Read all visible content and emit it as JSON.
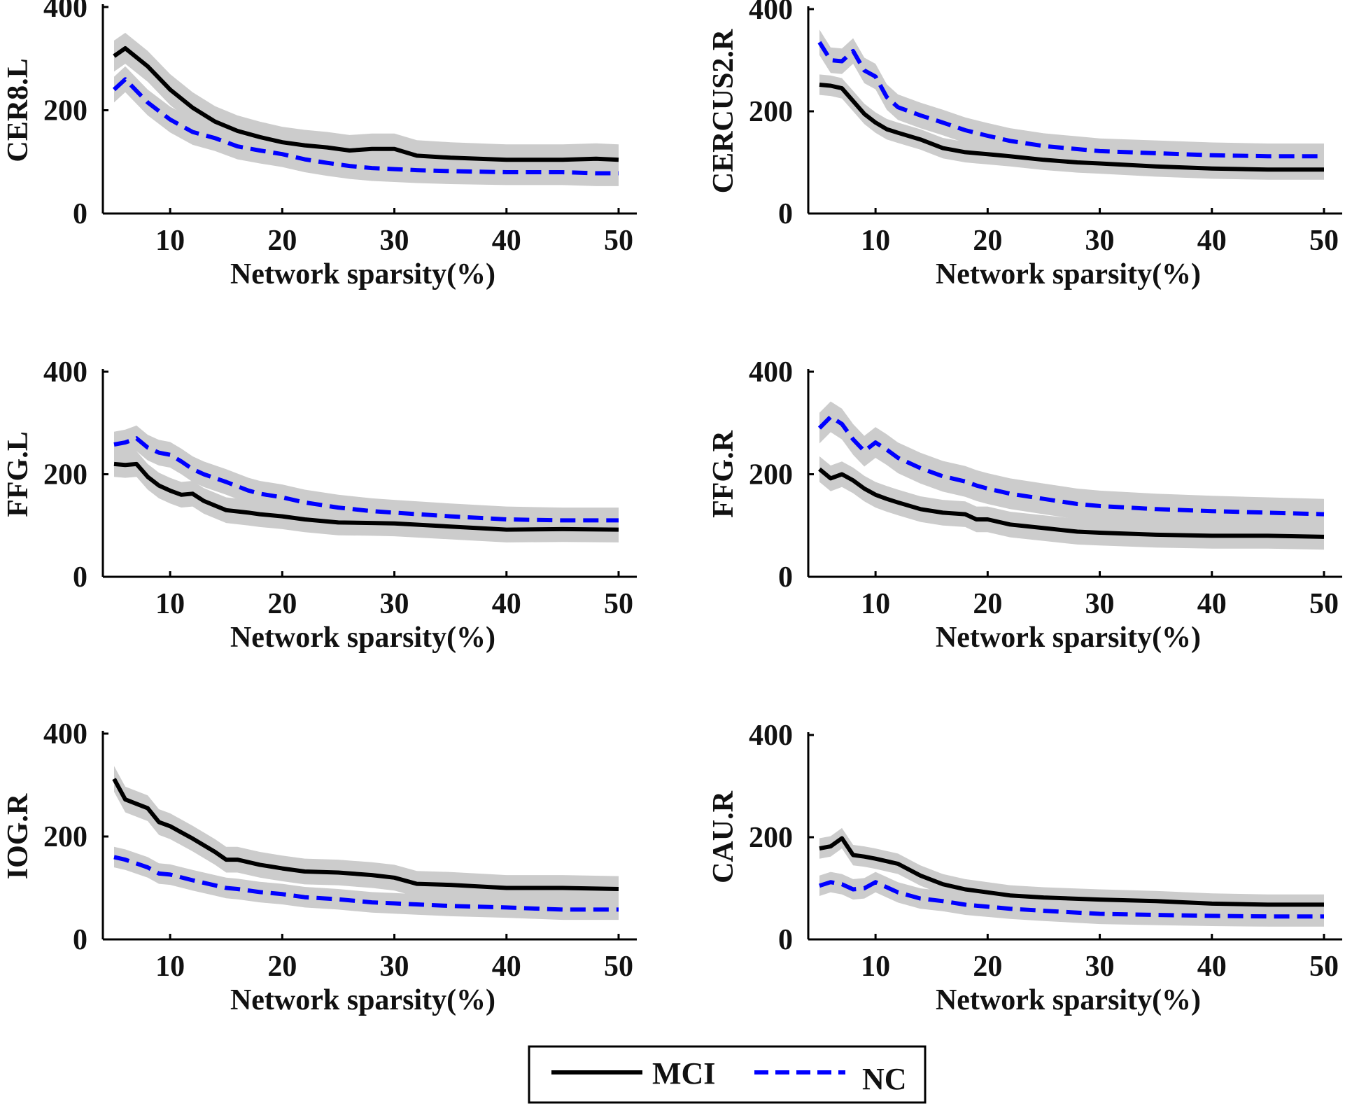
{
  "figure": {
    "legend": {
      "entries": [
        {
          "label": "MCI",
          "color": "#000000",
          "style": "solid"
        },
        {
          "label": "NC",
          "color": "#0000ff",
          "style": "dashed"
        }
      ],
      "position": "bottom-center"
    },
    "band_color": "#cccccc"
  },
  "chart_data": [
    {
      "type": "line",
      "title": "",
      "xlabel": "Network sparsity(%)",
      "ylabel": "CER8.L",
      "xlim": [
        4,
        51
      ],
      "ylim": [
        0,
        400
      ],
      "xticks": [
        10,
        20,
        30,
        40,
        50
      ],
      "yticks": [
        0,
        200,
        400
      ],
      "x": [
        5,
        6,
        8,
        10,
        12,
        14,
        16,
        18,
        20,
        22,
        24,
        26,
        28,
        30,
        32,
        35,
        40,
        45,
        48,
        50
      ],
      "series": [
        {
          "name": "MCI",
          "values": [
            305,
            320,
            285,
            240,
            205,
            178,
            160,
            148,
            138,
            132,
            128,
            122,
            125,
            125,
            112,
            108,
            104,
            104,
            106,
            104
          ],
          "band": 30
        },
        {
          "name": "NC",
          "values": [
            240,
            260,
            215,
            182,
            158,
            146,
            130,
            122,
            115,
            105,
            98,
            92,
            88,
            86,
            84,
            82,
            80,
            80,
            78,
            78
          ],
          "band": 25
        }
      ]
    },
    {
      "type": "line",
      "title": "",
      "xlabel": "Network sparsity(%)",
      "ylabel": "CERCUS2.R",
      "xlim": [
        4,
        51
      ],
      "ylim": [
        0,
        400
      ],
      "xticks": [
        10,
        20,
        30,
        40,
        50
      ],
      "yticks": [
        0,
        200,
        400
      ],
      "x": [
        5,
        6,
        7,
        8,
        9,
        10,
        11,
        12,
        14,
        16,
        18,
        20,
        22,
        25,
        28,
        30,
        35,
        40,
        45,
        50
      ],
      "series": [
        {
          "name": "MCI",
          "values": [
            252,
            250,
            245,
            220,
            195,
            178,
            165,
            158,
            145,
            128,
            120,
            116,
            112,
            105,
            100,
            98,
            92,
            88,
            86,
            86
          ],
          "band": 20
        },
        {
          "name": "NC",
          "values": [
            335,
            300,
            298,
            318,
            280,
            268,
            228,
            208,
            192,
            178,
            163,
            152,
            142,
            132,
            126,
            122,
            118,
            114,
            112,
            112
          ],
          "band": 25
        }
      ]
    },
    {
      "type": "line",
      "title": "",
      "xlabel": "Network sparsity(%)",
      "ylabel": "FFG.L",
      "xlim": [
        4,
        51
      ],
      "ylim": [
        0,
        400
      ],
      "xticks": [
        10,
        20,
        30,
        40,
        50
      ],
      "yticks": [
        0,
        200,
        400
      ],
      "x": [
        5,
        6,
        7,
        8,
        9,
        10,
        11,
        12,
        13,
        15,
        17,
        18,
        20,
        22,
        25,
        28,
        30,
        35,
        40,
        45,
        50
      ],
      "series": [
        {
          "name": "MCI",
          "values": [
            220,
            218,
            220,
            195,
            178,
            168,
            160,
            162,
            148,
            130,
            125,
            122,
            118,
            112,
            106,
            105,
            104,
            98,
            92,
            93,
            92
          ],
          "band": 25
        },
        {
          "name": "NC",
          "values": [
            258,
            262,
            270,
            252,
            242,
            238,
            225,
            210,
            200,
            185,
            168,
            162,
            155,
            145,
            135,
            128,
            125,
            118,
            112,
            110,
            110
          ],
          "band": 25
        }
      ]
    },
    {
      "type": "line",
      "title": "",
      "xlabel": "Network sparsity(%)",
      "ylabel": "FFG.R",
      "xlim": [
        4,
        51
      ],
      "ylim": [
        0,
        400
      ],
      "xticks": [
        10,
        20,
        30,
        40,
        50
      ],
      "yticks": [
        0,
        200,
        400
      ],
      "x": [
        5,
        6,
        7,
        8,
        9,
        10,
        11,
        12,
        14,
        16,
        18,
        19,
        20,
        22,
        25,
        28,
        30,
        35,
        40,
        45,
        50
      ],
      "series": [
        {
          "name": "MCI",
          "values": [
            210,
            192,
            200,
            188,
            172,
            160,
            152,
            145,
            132,
            125,
            122,
            112,
            112,
            102,
            95,
            88,
            86,
            82,
            80,
            80,
            78
          ],
          "band": 25
        },
        {
          "name": "NC",
          "values": [
            290,
            312,
            298,
            268,
            245,
            262,
            248,
            232,
            212,
            196,
            186,
            178,
            172,
            162,
            152,
            142,
            138,
            132,
            128,
            125,
            122
          ],
          "band": 30
        }
      ]
    },
    {
      "type": "line",
      "title": "",
      "xlabel": "Network sparsity(%)",
      "ylabel": "IOG.R",
      "xlim": [
        4,
        51
      ],
      "ylim": [
        0,
        400
      ],
      "xticks": [
        10,
        20,
        30,
        40,
        50
      ],
      "yticks": [
        0,
        200,
        400
      ],
      "x": [
        5,
        6,
        8,
        9,
        10,
        12,
        14,
        15,
        16,
        18,
        20,
        22,
        25,
        28,
        30,
        32,
        35,
        40,
        45,
        50
      ],
      "series": [
        {
          "name": "MCI",
          "values": [
            312,
            272,
            255,
            228,
            220,
            196,
            170,
            155,
            155,
            145,
            138,
            132,
            130,
            125,
            120,
            108,
            106,
            100,
            100,
            98
          ],
          "band": 25
        },
        {
          "name": "NC",
          "values": [
            160,
            155,
            140,
            128,
            126,
            115,
            105,
            100,
            98,
            92,
            88,
            82,
            78,
            72,
            70,
            68,
            65,
            62,
            58,
            58
          ],
          "band": 20
        }
      ]
    },
    {
      "type": "line",
      "title": "",
      "xlabel": "Network sparsity(%)",
      "ylabel": "CAU.R",
      "xlim": [
        4,
        51
      ],
      "ylim": [
        0,
        400
      ],
      "xticks": [
        10,
        20,
        30,
        40,
        50
      ],
      "yticks": [
        0,
        200,
        400
      ],
      "x": [
        5,
        6,
        7,
        8,
        9,
        10,
        12,
        14,
        16,
        18,
        20,
        22,
        25,
        30,
        35,
        40,
        45,
        50
      ],
      "series": [
        {
          "name": "MCI",
          "values": [
            178,
            182,
            198,
            165,
            162,
            158,
            148,
            125,
            108,
            98,
            92,
            86,
            82,
            78,
            75,
            70,
            68,
            68
          ],
          "band": 20
        },
        {
          "name": "NC",
          "values": [
            105,
            112,
            108,
            98,
            100,
            112,
            92,
            80,
            75,
            68,
            64,
            60,
            56,
            50,
            48,
            46,
            45,
            45
          ],
          "band": 20
        }
      ]
    }
  ]
}
